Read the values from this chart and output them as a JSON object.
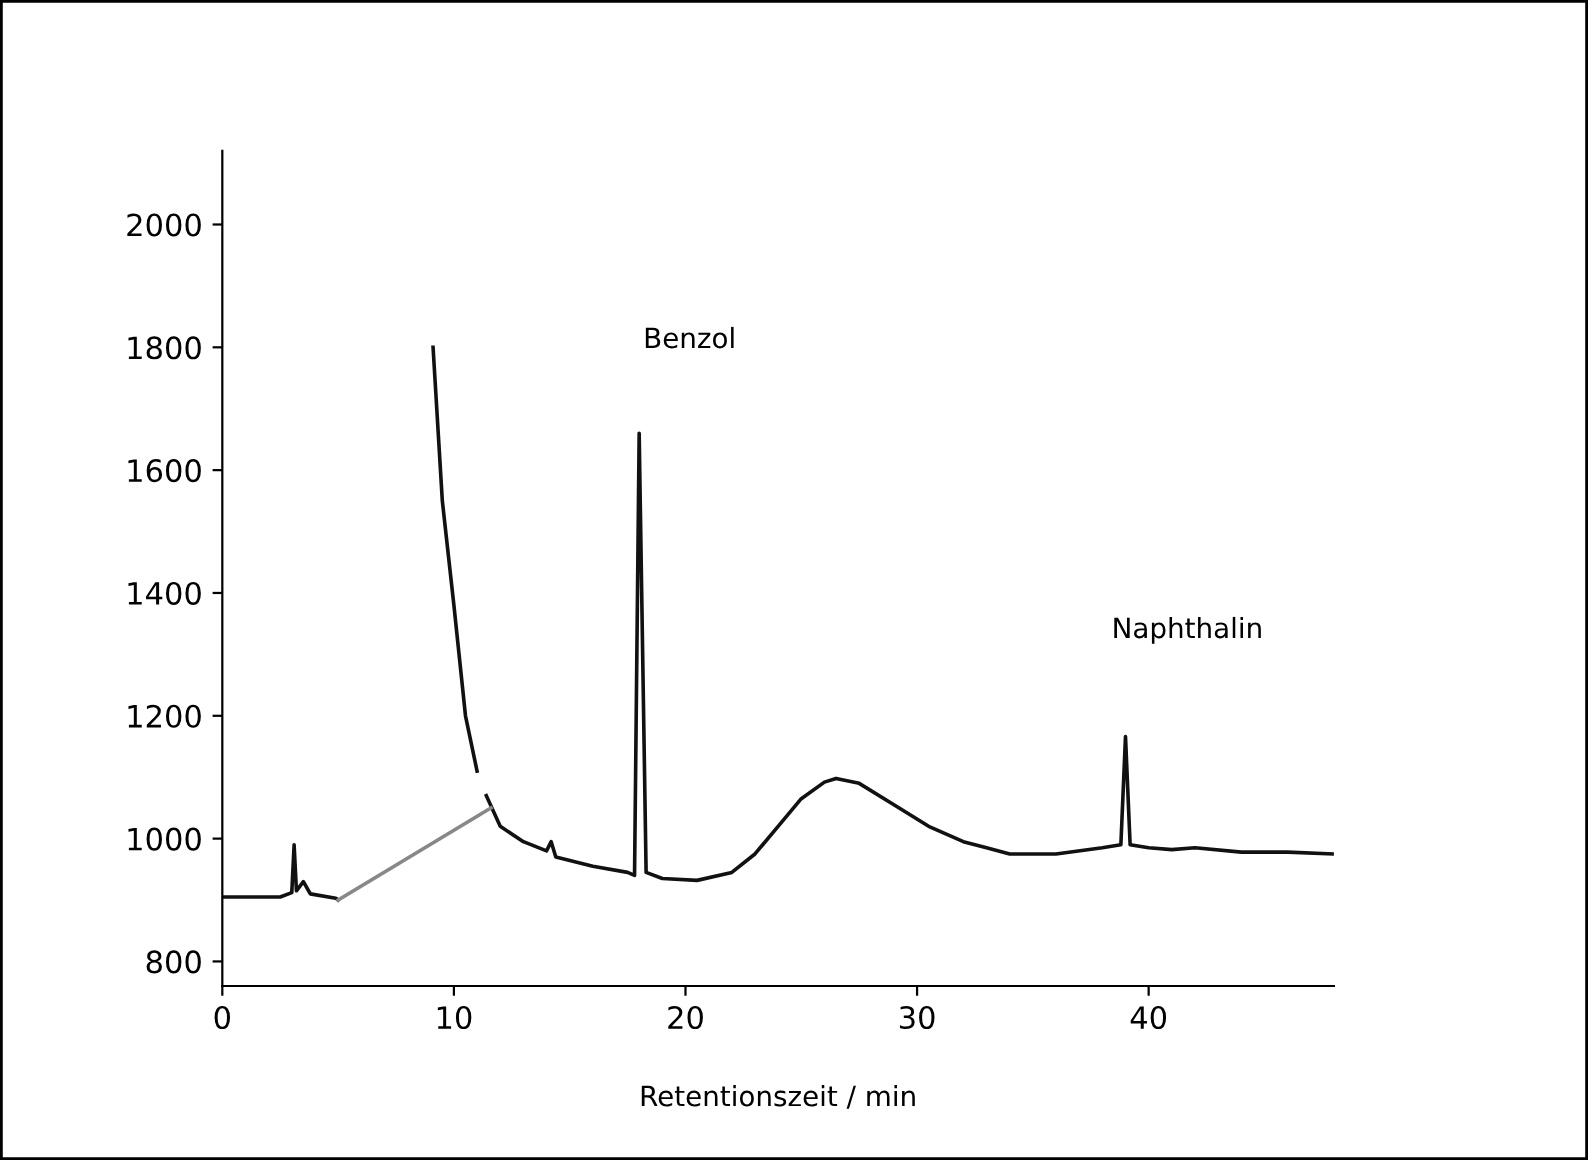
{
  "chart_data": {
    "type": "line",
    "xlabel": "Retentionszeit / min",
    "xlim": [
      0,
      48
    ],
    "xticks": [
      0,
      10,
      20,
      30,
      40
    ],
    "ylim": [
      760,
      2120
    ],
    "yticks": [
      800,
      1000,
      1200,
      1400,
      1600,
      1800,
      2000
    ],
    "grid": false,
    "legend": false,
    "marker": "none",
    "line_style": "solid",
    "annotations": [
      "Benzol",
      "Naphthalin"
    ],
    "series": [
      {
        "color": "#111111",
        "x": [
          0,
          2.5,
          3.0,
          3.1,
          3.2,
          3.5,
          3.8,
          4.9,
          5.0,
          5.3,
          9.1,
          9.5,
          10,
          10.5,
          11,
          11.2,
          11.4,
          12,
          13,
          14,
          14.2,
          14.4,
          16,
          17.5,
          17.8,
          18.0,
          18.3,
          19,
          20.5,
          22,
          23,
          24,
          25,
          26,
          26.5,
          27.5,
          29,
          30.5,
          32,
          33,
          34,
          36,
          38,
          38.8,
          39,
          39.2,
          40,
          41,
          42,
          44,
          46,
          48
        ],
        "values": [
          905,
          905,
          912,
          990,
          915,
          930,
          910,
          903,
          900,
          null,
          1800,
          1550,
          1380,
          1200,
          1110,
          null,
          1070,
          1020,
          995,
          980,
          995,
          970,
          955,
          945,
          940,
          1660,
          945,
          935,
          932,
          945,
          975,
          1020,
          1065,
          1092,
          1098,
          1090,
          1055,
          1020,
          995,
          985,
          975,
          975,
          985,
          990,
          1166,
          990,
          985,
          982,
          985,
          978,
          978,
          975
        ]
      },
      {
        "color": "#888888",
        "x": [
          5.0,
          11.6
        ],
        "values": [
          900,
          1050
        ]
      }
    ]
  }
}
